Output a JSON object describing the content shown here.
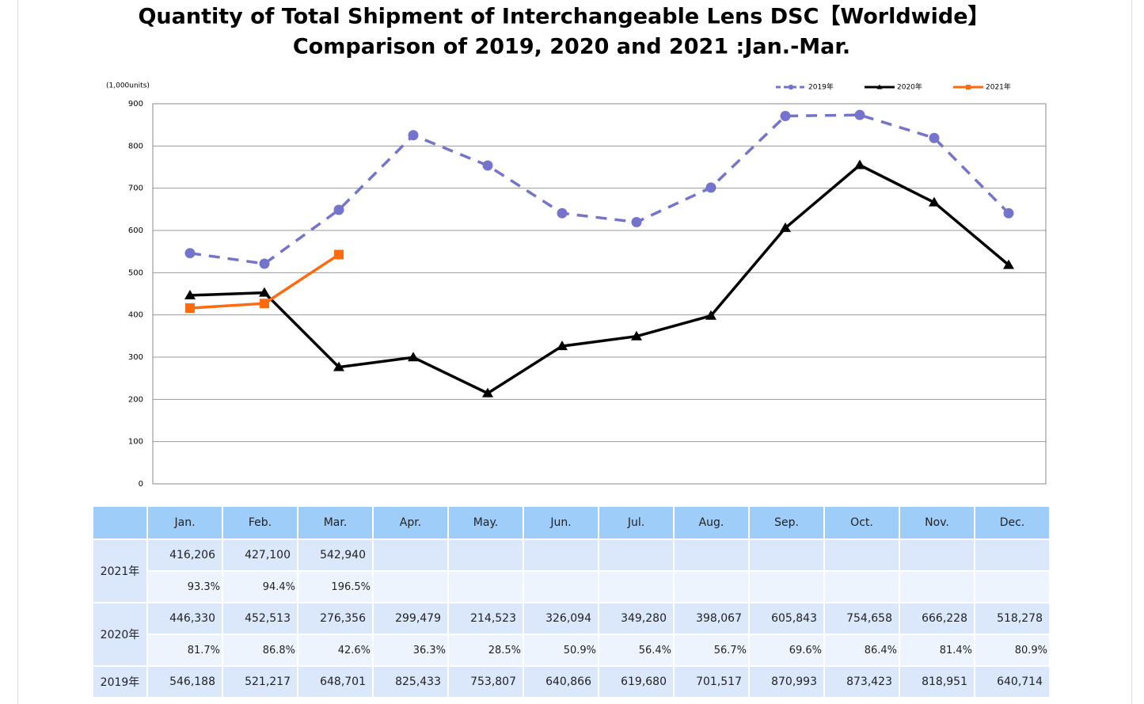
{
  "chart_data": {
    "type": "line",
    "title": "Quantity of Total Shipment of Interchangeable Lens DSC【Worldwide】",
    "subtitle": "Comparison of 2019, 2020 and 2021 :Jan.-Mar.",
    "y_label": "(1,000units)",
    "categories": [
      "Jan.",
      "Feb.",
      "Mar.",
      "Apr.",
      "May.",
      "Jun.",
      "Jul.",
      "Aug.",
      "Sep.",
      "Oct.",
      "Nov.",
      "Dec."
    ],
    "series": [
      {
        "name": "2019年",
        "color": "#7474cc",
        "dashed": true,
        "marker": "circle",
        "values": [
          546.188,
          521.217,
          648.701,
          825.433,
          753.807,
          640.866,
          619.68,
          701.517,
          870.993,
          873.423,
          818.951,
          640.714
        ]
      },
      {
        "name": "2020年",
        "color": "#000000",
        "dashed": false,
        "marker": "triangle",
        "values": [
          446.33,
          452.513,
          276.356,
          299.479,
          214.523,
          326.094,
          349.28,
          398.067,
          605.843,
          754.658,
          666.228,
          518.278
        ]
      },
      {
        "name": "2021年",
        "color": "#ff6a0e",
        "dashed": false,
        "marker": "square",
        "values": [
          416.206,
          427.1,
          542.94,
          null,
          null,
          null,
          null,
          null,
          null,
          null,
          null,
          null
        ]
      }
    ],
    "ylim": [
      0,
      900
    ],
    "yticks": [
      0,
      100,
      200,
      300,
      400,
      500,
      600,
      700,
      800,
      900
    ],
    "grid": true,
    "legend": "top-right"
  },
  "table": {
    "rows": [
      {
        "label": "2021年",
        "values": [
          "416,206",
          "427,100",
          "542,940"
        ],
        "ratios": [
          "93.3%",
          "94.4%",
          "196.5%"
        ]
      },
      {
        "label": "2020年",
        "values": [
          "446,330",
          "452,513",
          "276,356",
          "299,479",
          "214,523",
          "326,094",
          "349,280",
          "398,067",
          "605,843",
          "754,658",
          "666,228",
          "518,278"
        ],
        "ratios": [
          "81.7%",
          "86.8%",
          "42.6%",
          "36.3%",
          "28.5%",
          "50.9%",
          "56.4%",
          "56.7%",
          "69.6%",
          "86.4%",
          "81.4%",
          "80.9%"
        ]
      },
      {
        "label": "2019年",
        "values": [
          "546,188",
          "521,217",
          "648,701",
          "825,433",
          "753,807",
          "640,866",
          "619,680",
          "701,517",
          "870,993",
          "873,423",
          "818,951",
          "640,714"
        ]
      }
    ]
  }
}
